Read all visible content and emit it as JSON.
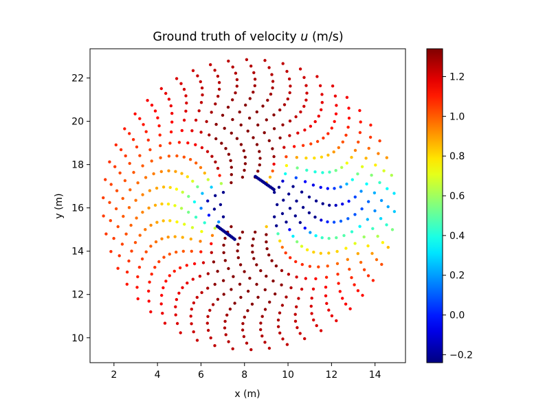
{
  "chart_data": {
    "type": "scatter",
    "title": "Ground truth of velocity u (m/s)",
    "title_parts": {
      "prefix": "Ground truth of velocity ",
      "variable": "u",
      "suffix": " (m/s)"
    },
    "xlabel": "x (m)",
    "ylabel": "y (m)",
    "xlim": [
      0.9,
      15.4
    ],
    "ylim": [
      8.85,
      23.35
    ],
    "xticks": [
      2,
      4,
      6,
      8,
      10,
      12,
      14
    ],
    "yticks": [
      10,
      12,
      14,
      16,
      18,
      20,
      22
    ],
    "grid": false,
    "colormap": "jet",
    "colorbar": {
      "min": -0.24,
      "max": 1.34,
      "ticks": [
        -0.2,
        0.0,
        0.2,
        0.4,
        0.6,
        0.8,
        1.0,
        1.2
      ],
      "tick_labels": [
        "−0.2",
        "0.0",
        "0.2",
        "0.4",
        "0.6",
        "0.8",
        "1.0",
        "1.2"
      ]
    },
    "field": {
      "description_points": "points on concentric rings around a tilted plate; colour = u value",
      "center": [
        8.2,
        16.15
      ],
      "ring_radii": [
        1.3,
        1.6,
        1.9,
        2.2,
        2.5,
        2.8,
        3.1,
        3.4,
        3.7,
        4.0,
        4.3,
        4.6,
        4.9,
        5.2,
        5.5,
        5.8,
        6.1,
        6.4,
        6.7
      ],
      "points_per_ring": [
        14,
        16,
        18,
        20,
        22,
        24,
        26,
        28,
        30,
        32,
        34,
        36,
        38,
        40,
        42,
        44,
        46,
        48,
        50
      ],
      "wake_direction_x": 1,
      "u_freestream": 0.95,
      "u_max": 1.34,
      "u_min": -0.24
    },
    "plate": {
      "segments": [
        {
          "from": [
            6.75,
            15.15
          ],
          "to": [
            7.55,
            14.55
          ]
        },
        {
          "from": [
            8.5,
            17.45
          ],
          "to": [
            9.35,
            16.85
          ]
        }
      ],
      "points_per_segment": 12,
      "u": -0.22
    }
  }
}
